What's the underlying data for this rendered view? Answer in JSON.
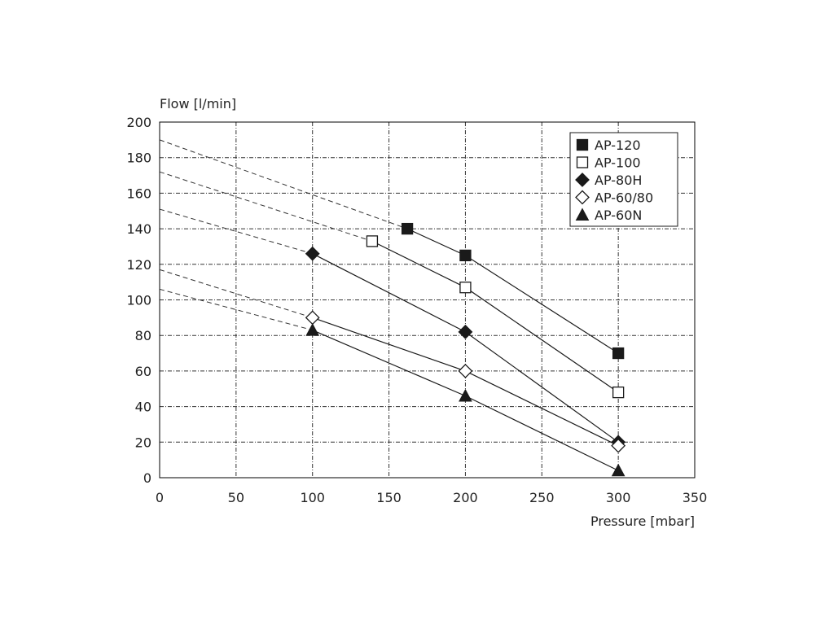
{
  "chart_data": {
    "type": "line",
    "ylabel": "Flow [l/min]",
    "xlabel": "Pressure [mbar]",
    "xlim": [
      0,
      350
    ],
    "ylim": [
      0,
      200
    ],
    "xticks": [
      "0",
      "50",
      "100",
      "150",
      "200",
      "250",
      "300",
      "350"
    ],
    "yticks": [
      "0",
      "20",
      "40",
      "60",
      "80",
      "100",
      "120",
      "140",
      "160",
      "180",
      "200"
    ],
    "grid": true,
    "legend_position": "top-right",
    "series": [
      {
        "name": "AP-120",
        "marker": "filled-square",
        "points": [
          [
            162,
            140
          ],
          [
            200,
            125
          ],
          [
            300,
            70
          ]
        ],
        "extrapolated_to": [
          0,
          190
        ]
      },
      {
        "name": "AP-100",
        "marker": "open-square",
        "points": [
          [
            139,
            133
          ],
          [
            200,
            107
          ],
          [
            300,
            48
          ]
        ],
        "extrapolated_to": [
          0,
          172
        ]
      },
      {
        "name": "AP-80H",
        "marker": "filled-diamond",
        "points": [
          [
            100,
            126
          ],
          [
            200,
            82
          ],
          [
            300,
            20
          ]
        ],
        "extrapolated_to": [
          0,
          151
        ]
      },
      {
        "name": "AP-60/80",
        "marker": "open-diamond",
        "points": [
          [
            100,
            90
          ],
          [
            200,
            60
          ],
          [
            300,
            18
          ]
        ],
        "extrapolated_to": [
          0,
          117
        ]
      },
      {
        "name": "AP-60N",
        "marker": "filled-triangle",
        "points": [
          [
            100,
            83
          ],
          [
            200,
            46
          ],
          [
            300,
            4
          ]
        ],
        "extrapolated_to": [
          0,
          106
        ]
      }
    ]
  }
}
